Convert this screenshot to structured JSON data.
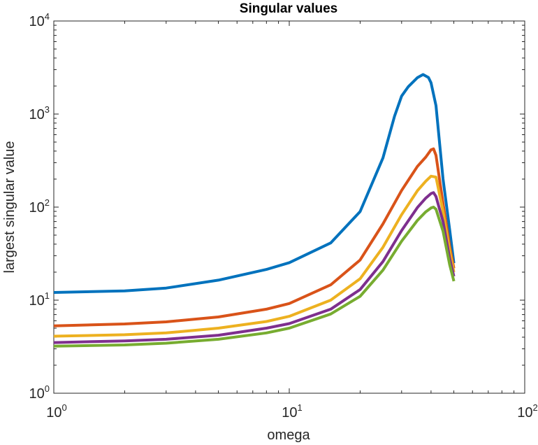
{
  "chart_data": {
    "type": "line",
    "title": "Singular values",
    "xlabel": "omega",
    "ylabel": "largest singular value",
    "xscale": "log",
    "yscale": "log",
    "xlim": [
      1,
      100
    ],
    "ylim": [
      1,
      10000
    ],
    "grid": false,
    "legend": "none",
    "x_ticks": [
      {
        "base": "10",
        "exp": "0"
      },
      {
        "base": "10",
        "exp": "1"
      },
      {
        "base": "10",
        "exp": "2"
      }
    ],
    "y_ticks": [
      {
        "base": "10",
        "exp": "0"
      },
      {
        "base": "10",
        "exp": "1"
      },
      {
        "base": "10",
        "exp": "2"
      },
      {
        "base": "10",
        "exp": "3"
      },
      {
        "base": "10",
        "exp": "4"
      }
    ],
    "series": [
      {
        "color": "#0072BD",
        "points": [
          [
            1,
            12.1
          ],
          [
            2,
            12.6
          ],
          [
            3,
            13.5
          ],
          [
            5,
            16.4
          ],
          [
            8,
            21.4
          ],
          [
            10,
            25.3
          ],
          [
            15,
            41.2
          ],
          [
            20,
            89.5
          ],
          [
            25,
            338
          ],
          [
            28,
            949
          ],
          [
            30,
            1560
          ],
          [
            32,
            1960
          ],
          [
            35,
            2460
          ],
          [
            37,
            2660
          ],
          [
            39,
            2470
          ],
          [
            40,
            2170
          ],
          [
            42,
            1230
          ],
          [
            45,
            200
          ],
          [
            48,
            57
          ],
          [
            50,
            25
          ]
        ]
      },
      {
        "color": "#D95319",
        "points": [
          [
            1,
            5.3
          ],
          [
            2,
            5.55
          ],
          [
            3,
            5.85
          ],
          [
            5,
            6.6
          ],
          [
            8,
            8.0
          ],
          [
            10,
            9.2
          ],
          [
            15,
            14.6
          ],
          [
            20,
            27
          ],
          [
            25,
            66
          ],
          [
            30,
            151
          ],
          [
            35,
            274
          ],
          [
            38,
            345
          ],
          [
            40,
            413
          ],
          [
            41,
            423
          ],
          [
            42,
            360
          ],
          [
            45,
            110
          ],
          [
            48,
            38
          ],
          [
            50,
            22
          ]
        ]
      },
      {
        "color": "#EDB120",
        "points": [
          [
            1,
            4.1
          ],
          [
            2,
            4.25
          ],
          [
            3,
            4.45
          ],
          [
            5,
            5.0
          ],
          [
            8,
            5.9
          ],
          [
            10,
            6.7
          ],
          [
            15,
            10.0
          ],
          [
            20,
            17
          ],
          [
            25,
            37
          ],
          [
            30,
            83
          ],
          [
            35,
            150
          ],
          [
            38,
            190
          ],
          [
            40,
            215
          ],
          [
            42,
            210
          ],
          [
            45,
            90
          ],
          [
            48,
            34
          ],
          [
            50,
            20
          ]
        ]
      },
      {
        "color": "#7E2F8E",
        "points": [
          [
            1,
            3.5
          ],
          [
            2,
            3.65
          ],
          [
            3,
            3.8
          ],
          [
            5,
            4.2
          ],
          [
            8,
            5.0
          ],
          [
            10,
            5.6
          ],
          [
            15,
            8.0
          ],
          [
            20,
            13
          ],
          [
            25,
            26
          ],
          [
            30,
            56
          ],
          [
            35,
            99
          ],
          [
            38,
            125
          ],
          [
            40,
            140
          ],
          [
            41,
            143
          ],
          [
            42,
            130
          ],
          [
            45,
            70
          ],
          [
            48,
            28
          ],
          [
            50,
            18
          ]
        ]
      },
      {
        "color": "#77AC30",
        "points": [
          [
            1,
            3.2
          ],
          [
            2,
            3.3
          ],
          [
            3,
            3.45
          ],
          [
            5,
            3.8
          ],
          [
            8,
            4.45
          ],
          [
            10,
            5.0
          ],
          [
            15,
            7.1
          ],
          [
            20,
            11
          ],
          [
            25,
            21
          ],
          [
            30,
            43
          ],
          [
            35,
            72
          ],
          [
            38,
            89
          ],
          [
            40,
            98
          ],
          [
            41,
            100
          ],
          [
            42,
            95
          ],
          [
            45,
            55
          ],
          [
            48,
            24
          ],
          [
            50,
            16
          ]
        ]
      }
    ]
  }
}
